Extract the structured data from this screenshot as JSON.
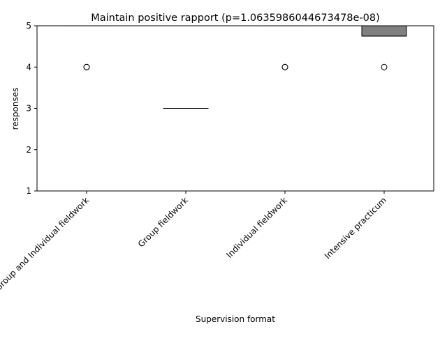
{
  "chart_data": {
    "type": "box",
    "title": "Maintain positive rapport (p=1.0635986044673478e-08)",
    "xlabel": "Supervision format",
    "ylabel": "responses",
    "ylim": [
      1,
      5
    ],
    "yticks": [
      1,
      2,
      3,
      4,
      5
    ],
    "grid": false,
    "categories": [
      "Group and Individual fieldwork",
      "Group fieldwork",
      "Individual fieldwork",
      "Intensive practicum"
    ],
    "boxes": [
      {
        "q1": 5,
        "median": 5,
        "q3": 5,
        "whisker_low": 5,
        "whisker_high": 5,
        "outliers": [
          4,
          4
        ],
        "fill": "#ffffff"
      },
      {
        "q1": 3,
        "median": 3,
        "q3": 3,
        "whisker_low": 3,
        "whisker_high": 3,
        "outliers": [],
        "fill": "#ffffff"
      },
      {
        "q1": 5,
        "median": 5,
        "q3": 5,
        "whisker_low": 5,
        "whisker_high": 5,
        "outliers": [
          4,
          4
        ],
        "fill": "#ffffff"
      },
      {
        "q1": 4.75,
        "median": 4.75,
        "q3": 5,
        "whisker_low": 4.75,
        "whisker_high": 5,
        "outliers": [
          4
        ],
        "fill": "#808080"
      }
    ]
  }
}
